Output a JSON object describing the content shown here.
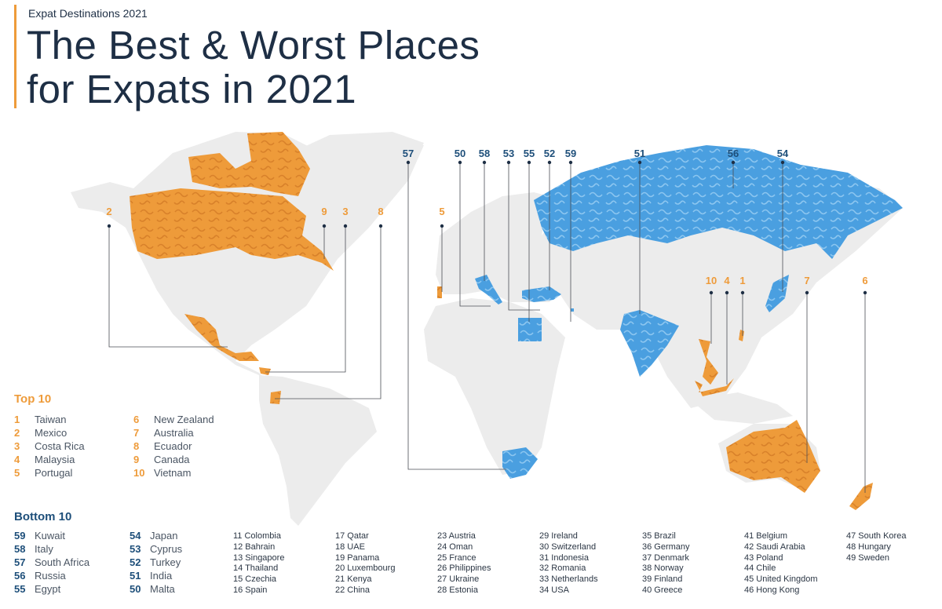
{
  "header": {
    "kicker": "Expat Destinations 2021",
    "title_line1": "The Best & Worst Places",
    "title_line2": "for Expats in 2021"
  },
  "colors": {
    "top": "#ee9b3a",
    "bottom": "#4a9fe0",
    "bottom_text": "#1e4f7a",
    "land": "#ececec",
    "accent_bar": "#ee9b3a"
  },
  "map_labels": {
    "top": [
      "2",
      "9",
      "3",
      "8",
      "5",
      "10",
      "4",
      "1",
      "7",
      "6"
    ],
    "bottom": [
      "57",
      "50",
      "58",
      "53",
      "55",
      "52",
      "59",
      "51",
      "56",
      "54"
    ]
  },
  "top10": {
    "heading": "Top 10",
    "col1": [
      {
        "rank": "1",
        "name": "Taiwan"
      },
      {
        "rank": "2",
        "name": "Mexico"
      },
      {
        "rank": "3",
        "name": "Costa Rica"
      },
      {
        "rank": "4",
        "name": "Malaysia"
      },
      {
        "rank": "5",
        "name": "Portugal"
      }
    ],
    "col2": [
      {
        "rank": "6",
        "name": "New Zealand"
      },
      {
        "rank": "7",
        "name": "Australia"
      },
      {
        "rank": "8",
        "name": "Ecuador"
      },
      {
        "rank": "9",
        "name": "Canada"
      },
      {
        "rank": "10",
        "name": "Vietnam"
      }
    ]
  },
  "bottom10": {
    "heading": "Bottom 10",
    "col1": [
      {
        "rank": "59",
        "name": "Kuwait"
      },
      {
        "rank": "58",
        "name": "Italy"
      },
      {
        "rank": "57",
        "name": "South Africa"
      },
      {
        "rank": "56",
        "name": "Russia"
      },
      {
        "rank": "55",
        "name": "Egypt"
      }
    ],
    "col2": [
      {
        "rank": "54",
        "name": "Japan"
      },
      {
        "rank": "53",
        "name": "Cyprus"
      },
      {
        "rank": "52",
        "name": "Turkey"
      },
      {
        "rank": "51",
        "name": "India"
      },
      {
        "rank": "50",
        "name": "Malta"
      }
    ]
  },
  "middle_rankings": [
    [
      "11 Colombia",
      "12 Bahrain",
      "13 Singapore",
      "14 Thailand",
      "15 Czechia",
      "16 Spain"
    ],
    [
      "17 Qatar",
      "18 UAE",
      "19 Panama",
      "20 Luxembourg",
      "21 Kenya",
      "22 China"
    ],
    [
      "23 Austria",
      "24 Oman",
      "25 France",
      "26 Philippines",
      "27 Ukraine",
      "28 Estonia"
    ],
    [
      "29 Ireland",
      "30 Switzerland",
      "31 Indonesia",
      "32 Romania",
      "33 Netherlands",
      "34 USA"
    ],
    [
      "35 Brazil",
      "36 Germany",
      "37 Denmark",
      "38 Norway",
      "39 Finland",
      "40 Greece"
    ],
    [
      "41 Belgium",
      "42 Saudi Arabia",
      "43 Poland",
      "44 Chile",
      "45 United Kingdom",
      "46 Hong Kong"
    ],
    [
      "47 South Korea",
      "48 Hungary",
      "49 Sweden"
    ]
  ]
}
